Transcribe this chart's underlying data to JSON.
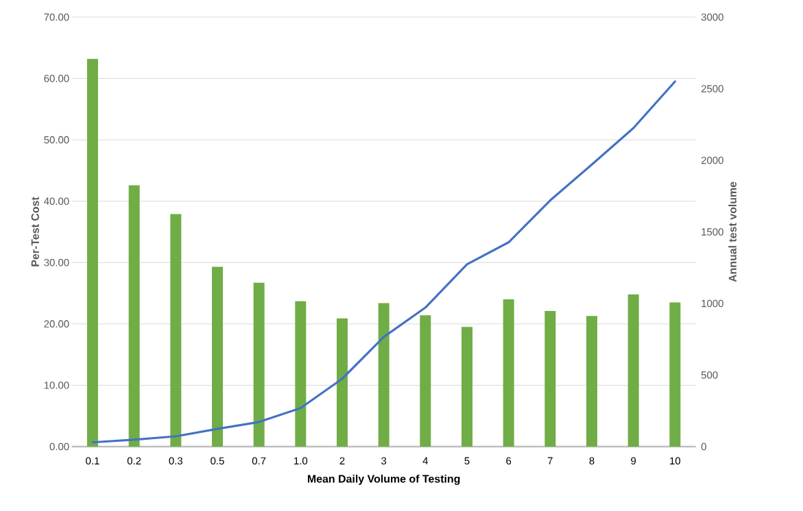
{
  "chart_data": {
    "type": "bar",
    "xlabel": "Mean Daily Volume of Testing",
    "ylabel": "Per-Test Cost",
    "y2label": "Annual test volume",
    "categories": [
      "0.1",
      "0.2",
      "0.3",
      "0.5",
      "0.7",
      "1.0",
      "2",
      "3",
      "4",
      "5",
      "6",
      "7",
      "8",
      "9",
      "10"
    ],
    "series": [
      {
        "color": "#70ad47",
        "values": [
          63.2,
          42.6,
          37.9,
          29.3,
          26.7,
          23.7,
          20.9,
          23.4,
          21.4,
          19.5,
          24.0,
          22.1,
          21.3,
          24.8,
          23.5
        ]
      },
      {
        "type": "line",
        "axis": "y2",
        "color": "#4472c4",
        "values": [
          30,
          48,
          72,
          124,
          172,
          269,
          474,
          766,
          971,
          1273,
          1427,
          1720,
          1970,
          2225,
          2550
        ]
      }
    ],
    "ylim": [
      0,
      70
    ],
    "yticks": [
      {
        "value": 0,
        "label": "0.00"
      },
      {
        "value": 10,
        "label": "10.00"
      },
      {
        "value": 20,
        "label": "20.00"
      },
      {
        "value": 30,
        "label": "30.00"
      },
      {
        "value": 40,
        "label": "40.00"
      },
      {
        "value": 50,
        "label": "50.00"
      },
      {
        "value": 60,
        "label": "60.00"
      },
      {
        "value": 70,
        "label": "70.00"
      }
    ],
    "y2lim": [
      0,
      3000
    ],
    "y2ticks": [
      0,
      500,
      1000,
      1500,
      2000,
      2500,
      3000
    ],
    "grid": "y"
  }
}
